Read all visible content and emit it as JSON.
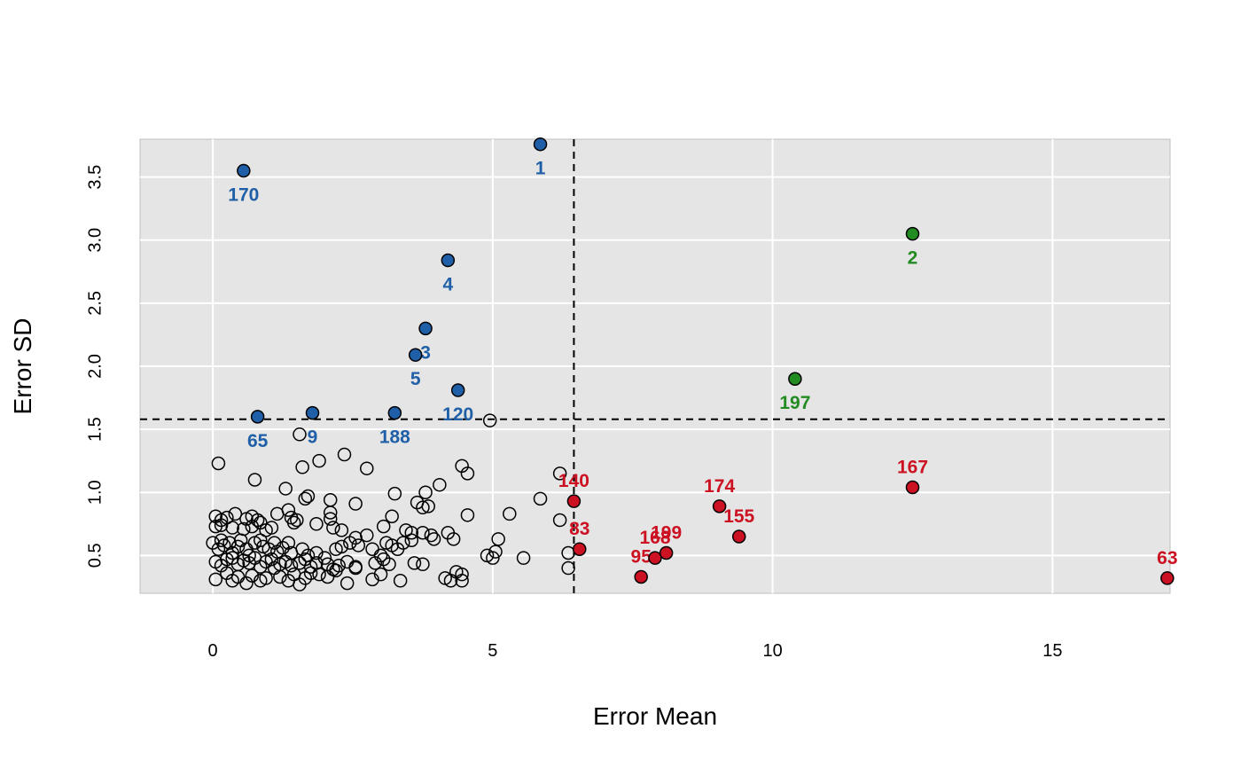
{
  "chart_data": {
    "type": "scatter",
    "title": "",
    "xlabel": "Error Mean",
    "ylabel": "Error SD",
    "xlim": [
      -1.3,
      17.1
    ],
    "ylim": [
      0.2,
      3.8
    ],
    "xticks": [
      0,
      5,
      10,
      15
    ],
    "yticks": [
      0.5,
      1.0,
      1.5,
      2.0,
      2.5,
      3.0,
      3.5
    ],
    "xtick_labels": [
      "0",
      "5",
      "10",
      "15"
    ],
    "ytick_labels": [
      "0.5",
      "1.0",
      "1.5",
      "2.0",
      "2.5",
      "3.0",
      "3.5"
    ],
    "grid": true,
    "panel_background": "#e5e5e5",
    "reference_lines": {
      "vertical_x": 6.45,
      "horizontal_y": 1.58
    },
    "colors": {
      "blue": "#1f5fa8",
      "green": "#228b22",
      "red": "#cc1122",
      "open": "#000000"
    },
    "highlighted": [
      {
        "label": "1",
        "x": 5.85,
        "y": 3.76,
        "group": "blue",
        "label_pos": "below"
      },
      {
        "label": "170",
        "x": 0.55,
        "y": 3.55,
        "group": "blue",
        "label_pos": "below"
      },
      {
        "label": "4",
        "x": 4.2,
        "y": 2.84,
        "group": "blue",
        "label_pos": "below"
      },
      {
        "label": "3",
        "x": 3.8,
        "y": 2.3,
        "group": "blue",
        "label_pos": "below"
      },
      {
        "label": "5",
        "x": 3.62,
        "y": 2.09,
        "group": "blue",
        "label_pos": "below"
      },
      {
        "label": "120",
        "x": 4.38,
        "y": 1.81,
        "group": "blue",
        "label_pos": "below"
      },
      {
        "label": "65",
        "x": 0.8,
        "y": 1.6,
        "group": "blue",
        "label_pos": "below"
      },
      {
        "label": "9",
        "x": 1.78,
        "y": 1.63,
        "group": "blue",
        "label_pos": "below"
      },
      {
        "label": "188",
        "x": 3.25,
        "y": 1.63,
        "group": "blue",
        "label_pos": "below"
      },
      {
        "label": "2",
        "x": 12.5,
        "y": 3.05,
        "group": "green",
        "label_pos": "below"
      },
      {
        "label": "197",
        "x": 10.4,
        "y": 1.9,
        "group": "green",
        "label_pos": "below"
      },
      {
        "label": "140",
        "x": 6.45,
        "y": 0.93,
        "group": "red",
        "label_pos": "above"
      },
      {
        "label": "83",
        "x": 6.55,
        "y": 0.55,
        "group": "red",
        "label_pos": "above"
      },
      {
        "label": "95",
        "x": 7.65,
        "y": 0.33,
        "group": "red",
        "label_pos": "above"
      },
      {
        "label": "168",
        "x": 7.9,
        "y": 0.48,
        "group": "red",
        "label_pos": "above"
      },
      {
        "label": "199",
        "x": 8.1,
        "y": 0.52,
        "group": "red",
        "label_pos": "above"
      },
      {
        "label": "174",
        "x": 9.05,
        "y": 0.89,
        "group": "red",
        "label_pos": "above"
      },
      {
        "label": "155",
        "x": 9.4,
        "y": 0.65,
        "group": "red",
        "label_pos": "above"
      },
      {
        "label": "167",
        "x": 12.5,
        "y": 1.04,
        "group": "red",
        "label_pos": "above"
      },
      {
        "label": "63",
        "x": 17.05,
        "y": 0.32,
        "group": "red",
        "label_pos": "above"
      }
    ],
    "open_points": [
      [
        4.95,
        1.57
      ],
      [
        1.55,
        1.46
      ],
      [
        0.1,
        1.23
      ],
      [
        1.6,
        1.2
      ],
      [
        1.9,
        1.25
      ],
      [
        2.35,
        1.3
      ],
      [
        2.75,
        1.19
      ],
      [
        0.75,
        1.1
      ],
      [
        1.3,
        1.03
      ],
      [
        4.45,
        1.21
      ],
      [
        4.55,
        1.15
      ],
      [
        4.05,
        1.06
      ],
      [
        3.8,
        1.0
      ],
      [
        6.2,
        1.15
      ],
      [
        5.85,
        0.95
      ],
      [
        1.7,
        0.97
      ],
      [
        1.65,
        0.95
      ],
      [
        2.1,
        0.94
      ],
      [
        2.55,
        0.91
      ],
      [
        3.25,
        0.99
      ],
      [
        3.65,
        0.92
      ],
      [
        3.75,
        0.88
      ],
      [
        3.85,
        0.89
      ],
      [
        4.55,
        0.82
      ],
      [
        5.3,
        0.83
      ],
      [
        6.2,
        0.78
      ],
      [
        0.05,
        0.81
      ],
      [
        0.15,
        0.78
      ],
      [
        0.25,
        0.8
      ],
      [
        0.4,
        0.83
      ],
      [
        0.6,
        0.79
      ],
      [
        0.7,
        0.81
      ],
      [
        0.8,
        0.78
      ],
      [
        0.85,
        0.76
      ],
      [
        0.05,
        0.73
      ],
      [
        0.15,
        0.74
      ],
      [
        0.35,
        0.72
      ],
      [
        0.55,
        0.71
      ],
      [
        0.7,
        0.73
      ],
      [
        0.95,
        0.7
      ],
      [
        1.05,
        0.72
      ],
      [
        1.15,
        0.83
      ],
      [
        1.35,
        0.86
      ],
      [
        1.4,
        0.8
      ],
      [
        1.45,
        0.76
      ],
      [
        1.5,
        0.78
      ],
      [
        1.85,
        0.75
      ],
      [
        2.1,
        0.84
      ],
      [
        2.1,
        0.79
      ],
      [
        2.15,
        0.72
      ],
      [
        2.3,
        0.7
      ],
      [
        2.55,
        0.64
      ],
      [
        2.75,
        0.66
      ],
      [
        3.05,
        0.73
      ],
      [
        3.2,
        0.81
      ],
      [
        3.45,
        0.7
      ],
      [
        3.55,
        0.68
      ],
      [
        3.75,
        0.68
      ],
      [
        3.9,
        0.66
      ],
      [
        4.2,
        0.68
      ],
      [
        4.3,
        0.63
      ],
      [
        5.1,
        0.63
      ],
      [
        5.05,
        0.53
      ],
      [
        0.0,
        0.6
      ],
      [
        0.1,
        0.55
      ],
      [
        0.15,
        0.62
      ],
      [
        0.2,
        0.58
      ],
      [
        0.3,
        0.6
      ],
      [
        0.35,
        0.52
      ],
      [
        0.45,
        0.57
      ],
      [
        0.5,
        0.62
      ],
      [
        0.6,
        0.55
      ],
      [
        0.65,
        0.5
      ],
      [
        0.75,
        0.6
      ],
      [
        0.85,
        0.62
      ],
      [
        0.9,
        0.57
      ],
      [
        1.0,
        0.55
      ],
      [
        1.1,
        0.6
      ],
      [
        1.15,
        0.53
      ],
      [
        1.25,
        0.56
      ],
      [
        1.35,
        0.6
      ],
      [
        1.4,
        0.52
      ],
      [
        1.6,
        0.55
      ],
      [
        1.7,
        0.5
      ],
      [
        1.85,
        0.52
      ],
      [
        2.0,
        0.48
      ],
      [
        2.2,
        0.55
      ],
      [
        2.3,
        0.57
      ],
      [
        2.45,
        0.6
      ],
      [
        2.6,
        0.58
      ],
      [
        2.85,
        0.55
      ],
      [
        3.0,
        0.5
      ],
      [
        3.1,
        0.6
      ],
      [
        3.2,
        0.58
      ],
      [
        3.3,
        0.55
      ],
      [
        3.4,
        0.6
      ],
      [
        3.55,
        0.62
      ],
      [
        3.95,
        0.63
      ],
      [
        4.9,
        0.5
      ],
      [
        5.0,
        0.48
      ],
      [
        5.55,
        0.48
      ],
      [
        6.35,
        0.52
      ],
      [
        0.05,
        0.45
      ],
      [
        0.15,
        0.42
      ],
      [
        0.25,
        0.47
      ],
      [
        0.35,
        0.48
      ],
      [
        0.45,
        0.43
      ],
      [
        0.55,
        0.46
      ],
      [
        0.65,
        0.44
      ],
      [
        0.75,
        0.48
      ],
      [
        0.85,
        0.41
      ],
      [
        0.95,
        0.45
      ],
      [
        1.05,
        0.47
      ],
      [
        1.1,
        0.4
      ],
      [
        1.2,
        0.43
      ],
      [
        1.3,
        0.45
      ],
      [
        1.4,
        0.42
      ],
      [
        1.55,
        0.44
      ],
      [
        1.65,
        0.47
      ],
      [
        1.75,
        0.41
      ],
      [
        1.85,
        0.44
      ],
      [
        2.05,
        0.43
      ],
      [
        2.15,
        0.39
      ],
      [
        2.25,
        0.42
      ],
      [
        2.4,
        0.45
      ],
      [
        2.55,
        0.41
      ],
      [
        2.9,
        0.44
      ],
      [
        3.05,
        0.47
      ],
      [
        3.15,
        0.43
      ],
      [
        3.6,
        0.44
      ],
      [
        3.75,
        0.43
      ],
      [
        4.35,
        0.37
      ],
      [
        4.45,
        0.35
      ],
      [
        0.05,
        0.31
      ],
      [
        0.25,
        0.36
      ],
      [
        0.35,
        0.3
      ],
      [
        0.45,
        0.33
      ],
      [
        0.6,
        0.28
      ],
      [
        0.7,
        0.34
      ],
      [
        0.85,
        0.3
      ],
      [
        0.95,
        0.32
      ],
      [
        1.2,
        0.33
      ],
      [
        1.35,
        0.3
      ],
      [
        1.45,
        0.35
      ],
      [
        1.55,
        0.27
      ],
      [
        1.65,
        0.32
      ],
      [
        1.75,
        0.36
      ],
      [
        1.9,
        0.35
      ],
      [
        2.05,
        0.33
      ],
      [
        2.2,
        0.38
      ],
      [
        2.4,
        0.28
      ],
      [
        2.55,
        0.4
      ],
      [
        2.85,
        0.31
      ],
      [
        3.0,
        0.35
      ],
      [
        3.35,
        0.3
      ],
      [
        4.15,
        0.32
      ],
      [
        4.25,
        0.3
      ],
      [
        4.45,
        0.3
      ],
      [
        6.35,
        0.4
      ]
    ]
  }
}
